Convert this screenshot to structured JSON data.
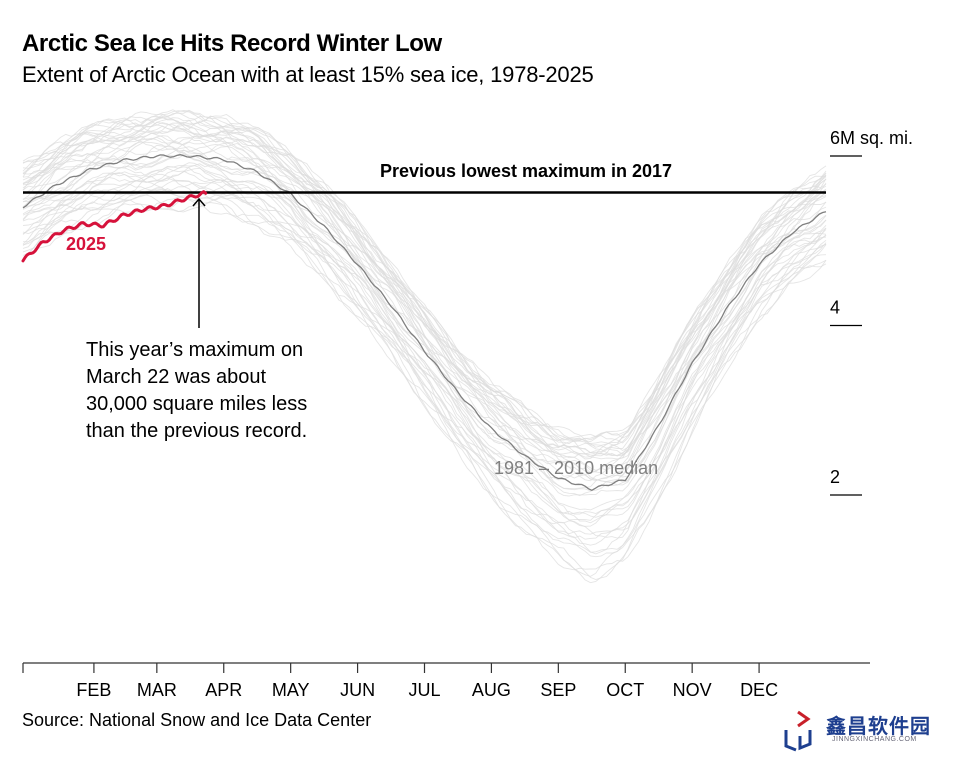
{
  "header": {
    "title": "Arctic Sea Ice Hits Record Winter Low",
    "subtitle": "Extent of Arctic Ocean with at least 15% sea ice, 1978-2025"
  },
  "footer": {
    "source": "Source: National Snow and Ice Data Center",
    "watermark_cn": "鑫昌软件园",
    "watermark_url": "JINNGXINCHANG.COM"
  },
  "colors": {
    "highlight": "#d6123b",
    "median": "#808080",
    "history": "#dcdcdc",
    "reference": "#000000"
  },
  "chart_data": {
    "type": "line",
    "title": "Arctic Sea Ice Hits Record Winter Low",
    "subtitle": "Extent of Arctic Ocean with at least 15% sea ice, 1978-2025",
    "xlabel": "",
    "ylabel": "6M sq. mi.",
    "x_unit": "month of year (1 = Jan 1, 13 = Dec 31)",
    "xlim": [
      1,
      13
    ],
    "ylim": [
      0,
      6.6
    ],
    "y_ticks": [
      {
        "value": 6,
        "label": "6M sq. mi."
      },
      {
        "value": 4,
        "label": "4"
      },
      {
        "value": 2,
        "label": "2"
      }
    ],
    "x_ticks": [
      "FEB",
      "MAR",
      "APR",
      "MAY",
      "JUN",
      "JUL",
      "AUG",
      "SEP",
      "OCT",
      "NOV",
      "DEC"
    ],
    "grid": false,
    "legend": "none (direct labels)",
    "reference_line": {
      "value": 5.57,
      "label": "Previous lowest maximum in 2017"
    },
    "series": [
      {
        "name": "2025",
        "x": [
          1.0,
          1.3,
          1.6,
          1.9,
          2.2,
          2.5,
          2.8,
          3.1,
          3.4,
          3.7,
          3.75
        ],
        "values": [
          4.77,
          4.98,
          5.12,
          5.2,
          5.18,
          5.3,
          5.37,
          5.41,
          5.49,
          5.56,
          5.54
        ]
      },
      {
        "name": "1981 – 2010 median",
        "x": [
          1.0,
          1.5,
          2.0,
          2.5,
          3.0,
          3.5,
          4.0,
          4.5,
          5.0,
          5.5,
          6.0,
          6.5,
          7.0,
          7.5,
          8.0,
          8.5,
          9.0,
          9.5,
          10.0,
          10.5,
          11.0,
          11.5,
          12.0,
          12.5,
          13.0
        ],
        "values": [
          5.4,
          5.66,
          5.84,
          5.95,
          6.0,
          6.0,
          5.96,
          5.81,
          5.55,
          5.17,
          4.72,
          4.24,
          3.7,
          3.21,
          2.78,
          2.46,
          2.2,
          2.07,
          2.18,
          2.82,
          3.55,
          4.18,
          4.72,
          5.1,
          5.35
        ]
      }
    ],
    "annotations": [
      {
        "text": "2025",
        "target": "2025 series"
      },
      {
        "text": "This year’s maximum on March 22 was about 30,000 square miles less than the previous record.",
        "target": "2025 maximum, March 22"
      },
      {
        "text": "1981 – 2010 median",
        "target": "median series"
      },
      {
        "text": "Previous lowest maximum in 2017",
        "target": "reference line"
      }
    ],
    "background_series_note": "Individual years 1978-2024 drawn as thin light-gray lines spanning roughly ±0.6M sq. mi. around the median (wider, up to about -0.9, near the September minimum)"
  },
  "labels": {
    "annotation_lines": [
      "This year’s maximum on",
      "March 22 was about",
      "30,000 square miles less",
      "than the previous record."
    ]
  }
}
